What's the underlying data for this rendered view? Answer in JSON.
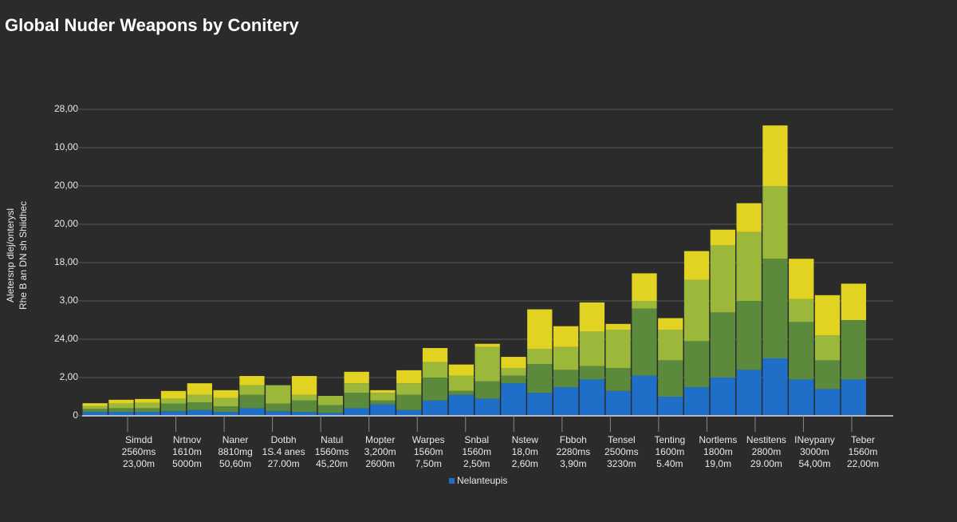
{
  "chart_data": {
    "type": "stacked_bar",
    "title": "Global Nuder Weapons by Conitery",
    "y_label": [
      "Aletersnp dlej/onterysl",
      "Rhe B an DN sh Shiidhec"
    ],
    "ylim": [
      0,
      8
    ],
    "yticks": [
      {
        "value": 0,
        "label": "0"
      },
      {
        "value": 1,
        "label": "2,00"
      },
      {
        "value": 2,
        "label": "24,00"
      },
      {
        "value": 3,
        "label": "3,00"
      },
      {
        "value": 4,
        "label": "18,00"
      },
      {
        "value": 5,
        "label": "20,00"
      },
      {
        "value": 6,
        "label": "20,00"
      },
      {
        "value": 7,
        "label": "10,00"
      },
      {
        "value": 8,
        "label": "28,00"
      }
    ],
    "grid": true,
    "categories": [
      null,
      null,
      null,
      null,
      null,
      null,
      null,
      null,
      null,
      null,
      null,
      null,
      null,
      null,
      null,
      null,
      null,
      null,
      null,
      null,
      null,
      null,
      null,
      null,
      null,
      null,
      null,
      null,
      null,
      null
    ],
    "series": [
      {
        "name": "Nelanteupis",
        "color": "#1f6fc8",
        "values": [
          0.1,
          0.1,
          0.1,
          0.12,
          0.15,
          0.1,
          0.2,
          0.12,
          0.1,
          0.08,
          0.2,
          0.3,
          0.15,
          0.4,
          0.55,
          0.45,
          0.85,
          0.6,
          0.75,
          0.95,
          0.65,
          1.05,
          0.5,
          0.75,
          1.0,
          1.2,
          1.5,
          0.95,
          0.7,
          0.95
        ]
      },
      {
        "name": null,
        "color": "#5b8a3d",
        "values": [
          0.08,
          0.1,
          0.1,
          0.2,
          0.2,
          0.15,
          0.35,
          0.2,
          0.3,
          0.2,
          0.4,
          0.1,
          0.4,
          0.6,
          0.1,
          0.45,
          0.2,
          0.75,
          0.45,
          0.35,
          0.6,
          1.75,
          0.95,
          1.2,
          1.7,
          1.8,
          2.6,
          1.5,
          0.75,
          1.55
        ]
      },
      {
        "name": null,
        "color": "#9cb83b",
        "values": [
          0.08,
          0.12,
          0.14,
          0.13,
          0.2,
          0.22,
          0.25,
          0.48,
          0.15,
          0.24,
          0.25,
          0.2,
          0.3,
          0.4,
          0.4,
          0.9,
          0.2,
          0.4,
          0.6,
          0.9,
          1.0,
          0.2,
          0.8,
          1.6,
          1.75,
          1.8,
          1.9,
          0.6,
          0.65,
          0
        ]
      },
      {
        "name": null,
        "color": "#e2d322",
        "values": [
          0.07,
          0.1,
          0.1,
          0.2,
          0.3,
          0.2,
          0.24,
          0,
          0.49,
          0,
          0.3,
          0.07,
          0.34,
          0.37,
          0.29,
          0.08,
          0.29,
          1.03,
          0.54,
          0.76,
          0.15,
          0.72,
          0.3,
          0.75,
          0.41,
          0.75,
          1.58,
          1.05,
          1.05,
          0.95
        ]
      }
    ],
    "label_groups": [
      [
        "Simdd",
        "2560ms",
        "23,00m"
      ],
      [
        "Nrtnov",
        "1610m",
        "5000m"
      ],
      [
        "Naner",
        "8810mg",
        "50,60m"
      ],
      [
        "Dotbh",
        "1S.4 anes",
        "27.00m"
      ],
      [
        "Natul",
        "1560ms",
        "45,20m"
      ],
      [
        "Mopter",
        "3,200m",
        "2600m"
      ],
      [
        "Warpes",
        "1560m",
        "7,50m"
      ],
      [
        "Snbal",
        "1560m",
        "2,50m"
      ],
      [
        "Nstew",
        "18,0m",
        "2,60m"
      ],
      [
        "Fbboh",
        "2280ms",
        "3,90m"
      ],
      [
        "Tensel",
        "2500ms",
        "3230m"
      ],
      [
        "Tenting",
        "1600m",
        "5.40m"
      ],
      [
        "Nortlems",
        "1800m",
        "19,0m"
      ],
      [
        "Nestitens",
        "2800m",
        "29.00m"
      ],
      [
        "INeypany",
        "3000m",
        "54,00m"
      ],
      [
        "Teber",
        "1560m",
        "22,00m"
      ]
    ]
  }
}
